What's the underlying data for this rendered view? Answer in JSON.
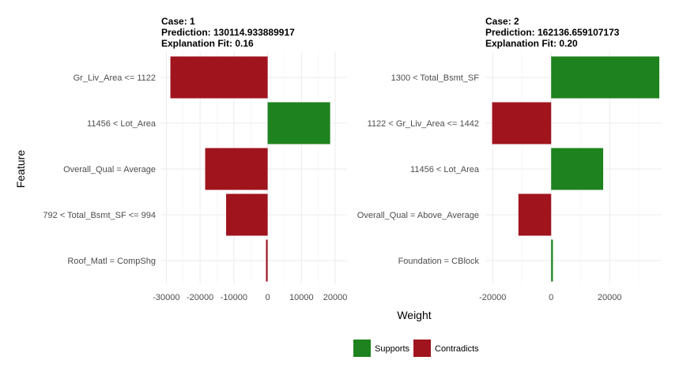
{
  "chart_data": {
    "type": "bar",
    "orientation": "horizontal",
    "xlabel": "Weight",
    "ylabel": "Feature",
    "colors": {
      "Supports": "#1e821e",
      "Contradicts": "#a0141e"
    },
    "legend": {
      "position": "bottom",
      "entries": [
        "Supports",
        "Contradicts"
      ]
    },
    "panels": [
      {
        "title_lines": [
          "Case: 1",
          "Prediction: 130114.933889917",
          "Explanation Fit: 0.16"
        ],
        "xlim": [
          -31500,
          23500
        ],
        "xticks": [
          -30000,
          -20000,
          -10000,
          0,
          10000,
          20000
        ],
        "xtick_labels": [
          "-30000",
          "-20000",
          "-10000",
          "0",
          "10000",
          "20000"
        ],
        "categories": [
          "Gr_Liv_Area <= 1122",
          "11456 < Lot_Area",
          "Overall_Qual = Average",
          "792 < Total_Bsmt_SF <= 994",
          "Roof_Matl = CompShg"
        ],
        "values": [
          -28800,
          18500,
          -18500,
          -12300,
          -500
        ]
      },
      {
        "title_lines": [
          "Case: 2",
          "Prediction: 162136.659107173",
          "Explanation Fit: 0.20"
        ],
        "xlim": [
          -22500,
          37800
        ],
        "xticks": [
          -20000,
          0,
          20000
        ],
        "xtick_labels": [
          "-20000",
          "0",
          "20000"
        ],
        "categories": [
          "1300 < Total_Bsmt_SF",
          "1122 < Gr_Liv_Area <= 1442",
          "11456 < Lot_Area",
          "Overall_Qual = Above_Average",
          "Foundation = CBlock"
        ],
        "values": [
          37000,
          -20200,
          17800,
          -11200,
          600
        ]
      }
    ]
  }
}
